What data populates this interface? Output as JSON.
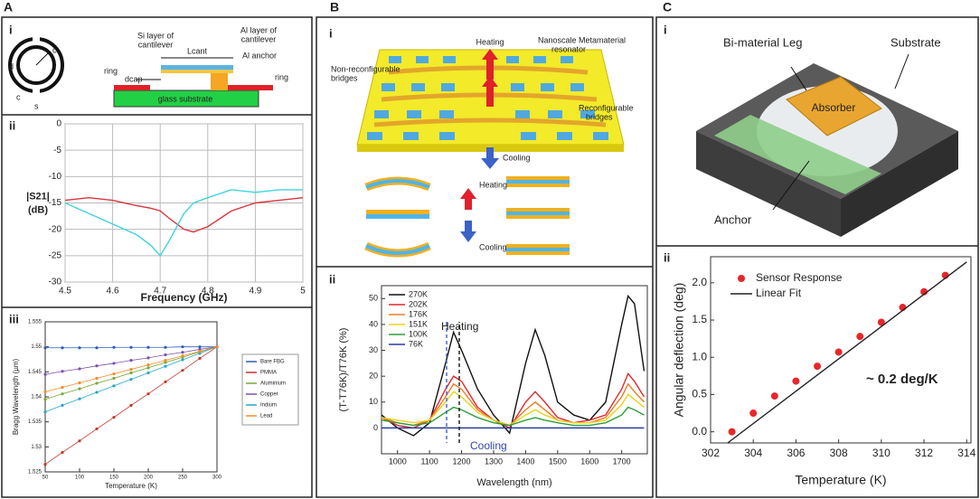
{
  "panel_labels": [
    "A",
    "B",
    "C"
  ],
  "sub_labels": [
    "i",
    "ii",
    "iii",
    "i",
    "ii",
    "i",
    "ii"
  ],
  "diagrams": {
    "A_i": [
      "Si layer of",
      "cantilever",
      "Lcant",
      "Al layer of",
      "cantilever",
      "Al anchor",
      "ring",
      "dcap",
      "glass substrate",
      "ring",
      "d",
      "c",
      "s",
      "c"
    ],
    "B_i": [
      "Heating",
      "Nanoscale Metamaterial",
      "resonator",
      "Non-reconfigurable",
      "bridges",
      "Reconfigurable",
      "bridges",
      "Cooling",
      "Heating",
      "Cooling"
    ],
    "C_i": [
      "Bi-material Leg",
      "Substrate",
      "Absorber",
      "Anchor"
    ]
  },
  "chart_data": [
    {
      "type": "line",
      "xlabel": "Frequency (GHz)",
      "ylabel": [
        "|S21|",
        "(dB)"
      ],
      "x": [
        4.5,
        4.55,
        4.6,
        4.65,
        4.68,
        4.7,
        4.72,
        4.75,
        4.77,
        4.8,
        4.85,
        4.9,
        4.95,
        5
      ],
      "series": [
        {
          "color": "#d9363e",
          "mode": "line",
          "values": [
            -14.5,
            -14,
            -14.5,
            -15.5,
            -16,
            -16.5,
            -18,
            -20,
            -20.5,
            -19.5,
            -16.5,
            -15,
            -14.5,
            -14
          ]
        },
        {
          "color": "#3fd3de",
          "mode": "line",
          "values": [
            -15,
            -17,
            -19,
            -21,
            -23,
            -25,
            -22,
            -17,
            -15,
            -14,
            -12.5,
            -13,
            -12.5,
            -12.5
          ]
        }
      ],
      "xlim": [
        4.5,
        5
      ],
      "xticks": [
        4.5,
        4.6,
        4.7,
        4.8,
        4.9,
        5
      ],
      "ylim": [
        -30,
        0
      ],
      "yticks": [
        0,
        -5,
        -10,
        -15,
        -20,
        -25,
        -30
      ],
      "grid": true
    },
    {
      "type": "line",
      "xlabel": "Temperature (K)",
      "ylabel": "Bragg Wavelength (µm)",
      "x": [
        50,
        75,
        100,
        125,
        150,
        175,
        200,
        225,
        250,
        275,
        300
      ],
      "series": [
        {
          "name": "Bare FBG",
          "color": "#2f5fb3",
          "mode": "lines+markers",
          "values": [
            1.5498,
            1.5498,
            1.5498,
            1.5498,
            1.5499,
            1.5499,
            1.5499,
            1.5499,
            1.55,
            1.55,
            1.55
          ]
        },
        {
          "name": "PMMA",
          "color": "#c0392b",
          "mode": "lines+markers",
          "values": [
            1.5265,
            1.5289,
            1.5312,
            1.5336,
            1.5359,
            1.5383,
            1.5406,
            1.543,
            1.5453,
            1.5477,
            1.55
          ]
        },
        {
          "name": "Aluminium",
          "color": "#7aa83a",
          "mode": "lines+markers",
          "values": [
            1.5395,
            1.5406,
            1.5416,
            1.5427,
            1.5437,
            1.5448,
            1.5458,
            1.5469,
            1.5479,
            1.549,
            1.55
          ]
        },
        {
          "name": "Copper",
          "color": "#7b52a8",
          "mode": "lines+markers",
          "values": [
            1.5445,
            1.5451,
            1.5456,
            1.5462,
            1.5467,
            1.5473,
            1.5478,
            1.5484,
            1.5489,
            1.5495,
            1.55
          ]
        },
        {
          "name": "Indium",
          "color": "#2aa7c4",
          "mode": "lines+markers",
          "values": [
            1.537,
            1.5383,
            1.5396,
            1.5409,
            1.5422,
            1.5435,
            1.5448,
            1.5461,
            1.5474,
            1.5487,
            1.55
          ]
        },
        {
          "name": "Lead",
          "color": "#f28c28",
          "mode": "lines+markers",
          "values": [
            1.541,
            1.5419,
            1.5428,
            1.5437,
            1.5446,
            1.5455,
            1.5464,
            1.5473,
            1.5482,
            1.5491,
            1.55
          ]
        }
      ],
      "xlim": [
        50,
        300
      ],
      "xticks": [
        50,
        100,
        150,
        200,
        250,
        300
      ],
      "ylim": [
        1.525,
        1.555
      ],
      "yticks": [
        1.525,
        1.53,
        1.535,
        1.54,
        1.545,
        1.55,
        1.555
      ],
      "grid": false,
      "legend": "outside right"
    },
    {
      "type": "line",
      "xlabel": "Wavelength (nm)",
      "ylabel": "(T-T76K)/T76K (%)",
      "annotations": [
        "Heating",
        "Cooling"
      ],
      "x": [
        950,
        1000,
        1050,
        1100,
        1150,
        1175,
        1200,
        1250,
        1300,
        1350,
        1400,
        1430,
        1460,
        1500,
        1550,
        1600,
        1650,
        1700,
        1720,
        1740,
        1770
      ],
      "series": [
        {
          "name": "270K",
          "color": "#111111",
          "mode": "line",
          "values": [
            5,
            0,
            -3,
            2,
            25,
            37,
            30,
            15,
            5,
            -2,
            25,
            38,
            28,
            10,
            5,
            3,
            10,
            40,
            51,
            48,
            22
          ]
        },
        {
          "name": "202K",
          "color": "#e0282e",
          "mode": "line",
          "values": [
            4,
            1,
            0,
            3,
            15,
            20,
            18,
            8,
            3,
            0,
            10,
            14,
            10,
            4,
            2,
            3,
            5,
            15,
            21,
            18,
            12
          ]
        },
        {
          "name": "176K",
          "color": "#f07a20",
          "mode": "line",
          "values": [
            4,
            2,
            1,
            3,
            12,
            17,
            15,
            7,
            3,
            1,
            7,
            10,
            7,
            3,
            2,
            2,
            4,
            12,
            17,
            14,
            10
          ]
        },
        {
          "name": "151K",
          "color": "#e8d21c",
          "mode": "line",
          "values": [
            4,
            3,
            2,
            3,
            10,
            14,
            12,
            6,
            3,
            1,
            5,
            7,
            5,
            3,
            2,
            2,
            3,
            9,
            13,
            11,
            8
          ]
        },
        {
          "name": "100K",
          "color": "#2e9e3a",
          "mode": "line",
          "values": [
            3,
            2,
            1,
            2,
            6,
            8,
            7,
            4,
            2,
            1,
            3,
            4,
            3,
            2,
            1,
            1,
            2,
            5,
            8,
            7,
            5
          ]
        },
        {
          "name": "76K",
          "color": "#2a3d9c",
          "mode": "line",
          "values": [
            0,
            0,
            0,
            0,
            0,
            0,
            0,
            0,
            0,
            0,
            0,
            0,
            0,
            0,
            0,
            0,
            0,
            0,
            0,
            0,
            0
          ]
        }
      ],
      "xlim": [
        950,
        1780
      ],
      "xticks": [
        1000,
        1100,
        1200,
        1300,
        1400,
        1500,
        1600,
        1700
      ],
      "ylim": [
        -10,
        55
      ],
      "yticks": [
        0,
        10,
        20,
        30,
        40,
        50
      ],
      "grid": false,
      "legend": "upper left"
    },
    {
      "type": "scatter",
      "xlabel": "Temperature (K)",
      "ylabel": "Angular deflection (deg)",
      "annotations": [
        "~ 0.2 deg/K"
      ],
      "series": [
        {
          "name": "Sensor Response",
          "color": "#e8262a",
          "mode": "markers",
          "x": [
            303,
            304,
            305,
            306,
            307,
            308,
            309,
            310,
            311,
            312,
            313
          ],
          "values": [
            0.0,
            0.25,
            0.48,
            0.68,
            0.88,
            1.07,
            1.28,
            1.47,
            1.67,
            1.88,
            2.1
          ]
        },
        {
          "name": "Linear Fit",
          "color": "#222222",
          "mode": "line",
          "x": [
            302.8,
            314
          ],
          "values": [
            -0.15,
            2.28
          ]
        }
      ],
      "xlim": [
        302,
        314.2
      ],
      "xticks": [
        302,
        304,
        306,
        308,
        310,
        312,
        314
      ],
      "ylim": [
        -0.15,
        2.35
      ],
      "yticks": [
        {
          "value": 0,
          "label": "0.0"
        },
        0.5,
        {
          "value": 1,
          "label": "1.0"
        },
        1.5,
        {
          "value": 2,
          "label": "2.0"
        }
      ],
      "grid": false,
      "legend": "upper left"
    }
  ]
}
